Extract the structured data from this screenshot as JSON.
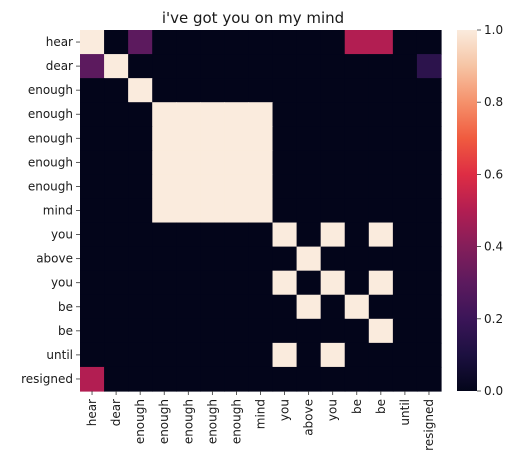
{
  "chart_data": {
    "type": "heatmap",
    "title": "i've got you on my mind",
    "labels": [
      "hear",
      "dear",
      "enough",
      "enough",
      "enough",
      "enough",
      "enough",
      "mind",
      "you",
      "above",
      "you",
      "be",
      "be",
      "until",
      "resigned"
    ],
    "xlabel": "",
    "ylabel": "",
    "colorbar": {
      "min": 0.0,
      "max": 1.0,
      "ticks": [
        0.0,
        0.2,
        0.4,
        0.6,
        0.8,
        1.0
      ],
      "tick_labels": [
        "0.0",
        "0.2",
        "0.4",
        "0.6",
        "0.8",
        "1.0"
      ],
      "colormap": "rocket",
      "stops": [
        {
          "v": 0.0,
          "color": "#03051a"
        },
        {
          "v": 0.1,
          "color": "#1c1040"
        },
        {
          "v": 0.2,
          "color": "#3b1558"
        },
        {
          "v": 0.3,
          "color": "#5c1a5e"
        },
        {
          "v": 0.4,
          "color": "#841e5a"
        },
        {
          "v": 0.5,
          "color": "#b21e52"
        },
        {
          "v": 0.6,
          "color": "#de2d44"
        },
        {
          "v": 0.7,
          "color": "#f05b3f"
        },
        {
          "v": 0.8,
          "color": "#f5916b"
        },
        {
          "v": 0.9,
          "color": "#f6c4a4"
        },
        {
          "v": 1.0,
          "color": "#faebdd"
        }
      ]
    },
    "values": [
      [
        1,
        0,
        0.3,
        0,
        0,
        0,
        0,
        0,
        0,
        0,
        0,
        0.5,
        0.5,
        0,
        0
      ],
      [
        0.3,
        1,
        0,
        0,
        0,
        0,
        0,
        0,
        0,
        0,
        0,
        0,
        0,
        0,
        0.15
      ],
      [
        0,
        0,
        1,
        0,
        0,
        0,
        0,
        0,
        0,
        0,
        0,
        0,
        0,
        0,
        0
      ],
      [
        0,
        0,
        0,
        1,
        1,
        1,
        1,
        1,
        0,
        0,
        0,
        0,
        0,
        0,
        0
      ],
      [
        0,
        0,
        0,
        1,
        1,
        1,
        1,
        1,
        0,
        0,
        0,
        0,
        0,
        0,
        0
      ],
      [
        0,
        0,
        0,
        1,
        1,
        1,
        1,
        1,
        0,
        0,
        0,
        0,
        0,
        0,
        0
      ],
      [
        0,
        0,
        0,
        1,
        1,
        1,
        1,
        1,
        0,
        0,
        0,
        0,
        0,
        0,
        0
      ],
      [
        0,
        0,
        0,
        1,
        1,
        1,
        1,
        1,
        0,
        0,
        0,
        0,
        0,
        0,
        0
      ],
      [
        0,
        0,
        0,
        0,
        0,
        0,
        0,
        0,
        1,
        0,
        1,
        0,
        1,
        0,
        0
      ],
      [
        0,
        0,
        0,
        0,
        0,
        0,
        0,
        0,
        0,
        1,
        0,
        0,
        0,
        0,
        0
      ],
      [
        0,
        0,
        0,
        0,
        0,
        0,
        0,
        0,
        1,
        0,
        1,
        0,
        1,
        0,
        0
      ],
      [
        0,
        0,
        0,
        0,
        0,
        0,
        0,
        0,
        0,
        1,
        0,
        1,
        0,
        0,
        0
      ],
      [
        0,
        0,
        0,
        0,
        0,
        0,
        0,
        0,
        0,
        0,
        0,
        0,
        1,
        0,
        0
      ],
      [
        0,
        0,
        0,
        0,
        0,
        0,
        0,
        0,
        1,
        0,
        1,
        0,
        0,
        0,
        0
      ],
      [
        0.5,
        0,
        0,
        0,
        0,
        0,
        0,
        0,
        0,
        0,
        0,
        0,
        0,
        0,
        0
      ]
    ]
  }
}
